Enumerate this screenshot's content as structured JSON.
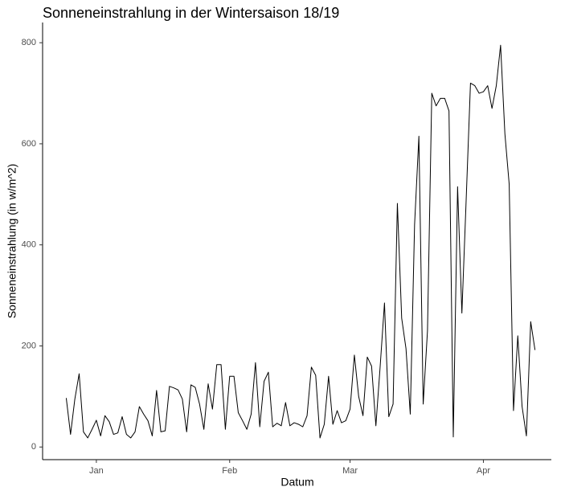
{
  "chart_data": {
    "type": "line",
    "title": "Sonneneinstrahlung in der Wintersaison 18/19",
    "x_label": "Datum",
    "y_label": "Sonneneinstrahlung (in w/m^2)",
    "color": "#000000",
    "x": [
      -7,
      -6,
      -5,
      -4,
      -3,
      -2,
      -1,
      0,
      1,
      2,
      3,
      4,
      5,
      6,
      7,
      8,
      9,
      10,
      11,
      12,
      13,
      14,
      15,
      16,
      17,
      18,
      19,
      20,
      21,
      22,
      23,
      24,
      25,
      26,
      27,
      28,
      29,
      30,
      31,
      32,
      33,
      34,
      35,
      36,
      37,
      38,
      39,
      40,
      41,
      42,
      43,
      44,
      45,
      46,
      47,
      48,
      49,
      50,
      51,
      52,
      53,
      54,
      55,
      56,
      57,
      58,
      59,
      60,
      61,
      62,
      63,
      64,
      65,
      66,
      67,
      68,
      69,
      70,
      71,
      72,
      73,
      74,
      75,
      76,
      77,
      78,
      79,
      80,
      81,
      82,
      83,
      84,
      85,
      86,
      87,
      88,
      89,
      90,
      91,
      92,
      93,
      94,
      95,
      96,
      97,
      98,
      99,
      100,
      101,
      102
    ],
    "series": [
      {
        "name": "Sonneneinstrahlung",
        "values": [
          97,
          25,
          95,
          145,
          30,
          18,
          35,
          53,
          22,
          62,
          50,
          25,
          28,
          60,
          25,
          18,
          30,
          80,
          65,
          52,
          22,
          112,
          30,
          32,
          120,
          117,
          113,
          95,
          30,
          123,
          118,
          85,
          35,
          125,
          75,
          163,
          163,
          35,
          140,
          140,
          68,
          52,
          35,
          65,
          167,
          40,
          130,
          148,
          40,
          47,
          42,
          88,
          42,
          48,
          45,
          40,
          62,
          158,
          142,
          18,
          45,
          140,
          45,
          72,
          48,
          52,
          75,
          182,
          100,
          62,
          178,
          160,
          42,
          160,
          285,
          60,
          85,
          482,
          255,
          195,
          65,
          440,
          615,
          85,
          230,
          700,
          675,
          690,
          690,
          665,
          20,
          515,
          265,
          490,
          720,
          715,
          700,
          703,
          715,
          670,
          715,
          795,
          620,
          520,
          72,
          220,
          80,
          22,
          248,
          192
        ]
      }
    ],
    "xlim": [
      -12.5,
      105.8
    ],
    "xticks": [
      {
        "value": 0,
        "label": "Jan"
      },
      {
        "value": 31,
        "label": "Feb"
      },
      {
        "value": 59,
        "label": "Mar"
      },
      {
        "value": 90,
        "label": "Apr"
      }
    ],
    "ylim": [
      -25,
      840
    ],
    "yticks": [
      0,
      200,
      400,
      600,
      800
    ],
    "grid": false
  }
}
